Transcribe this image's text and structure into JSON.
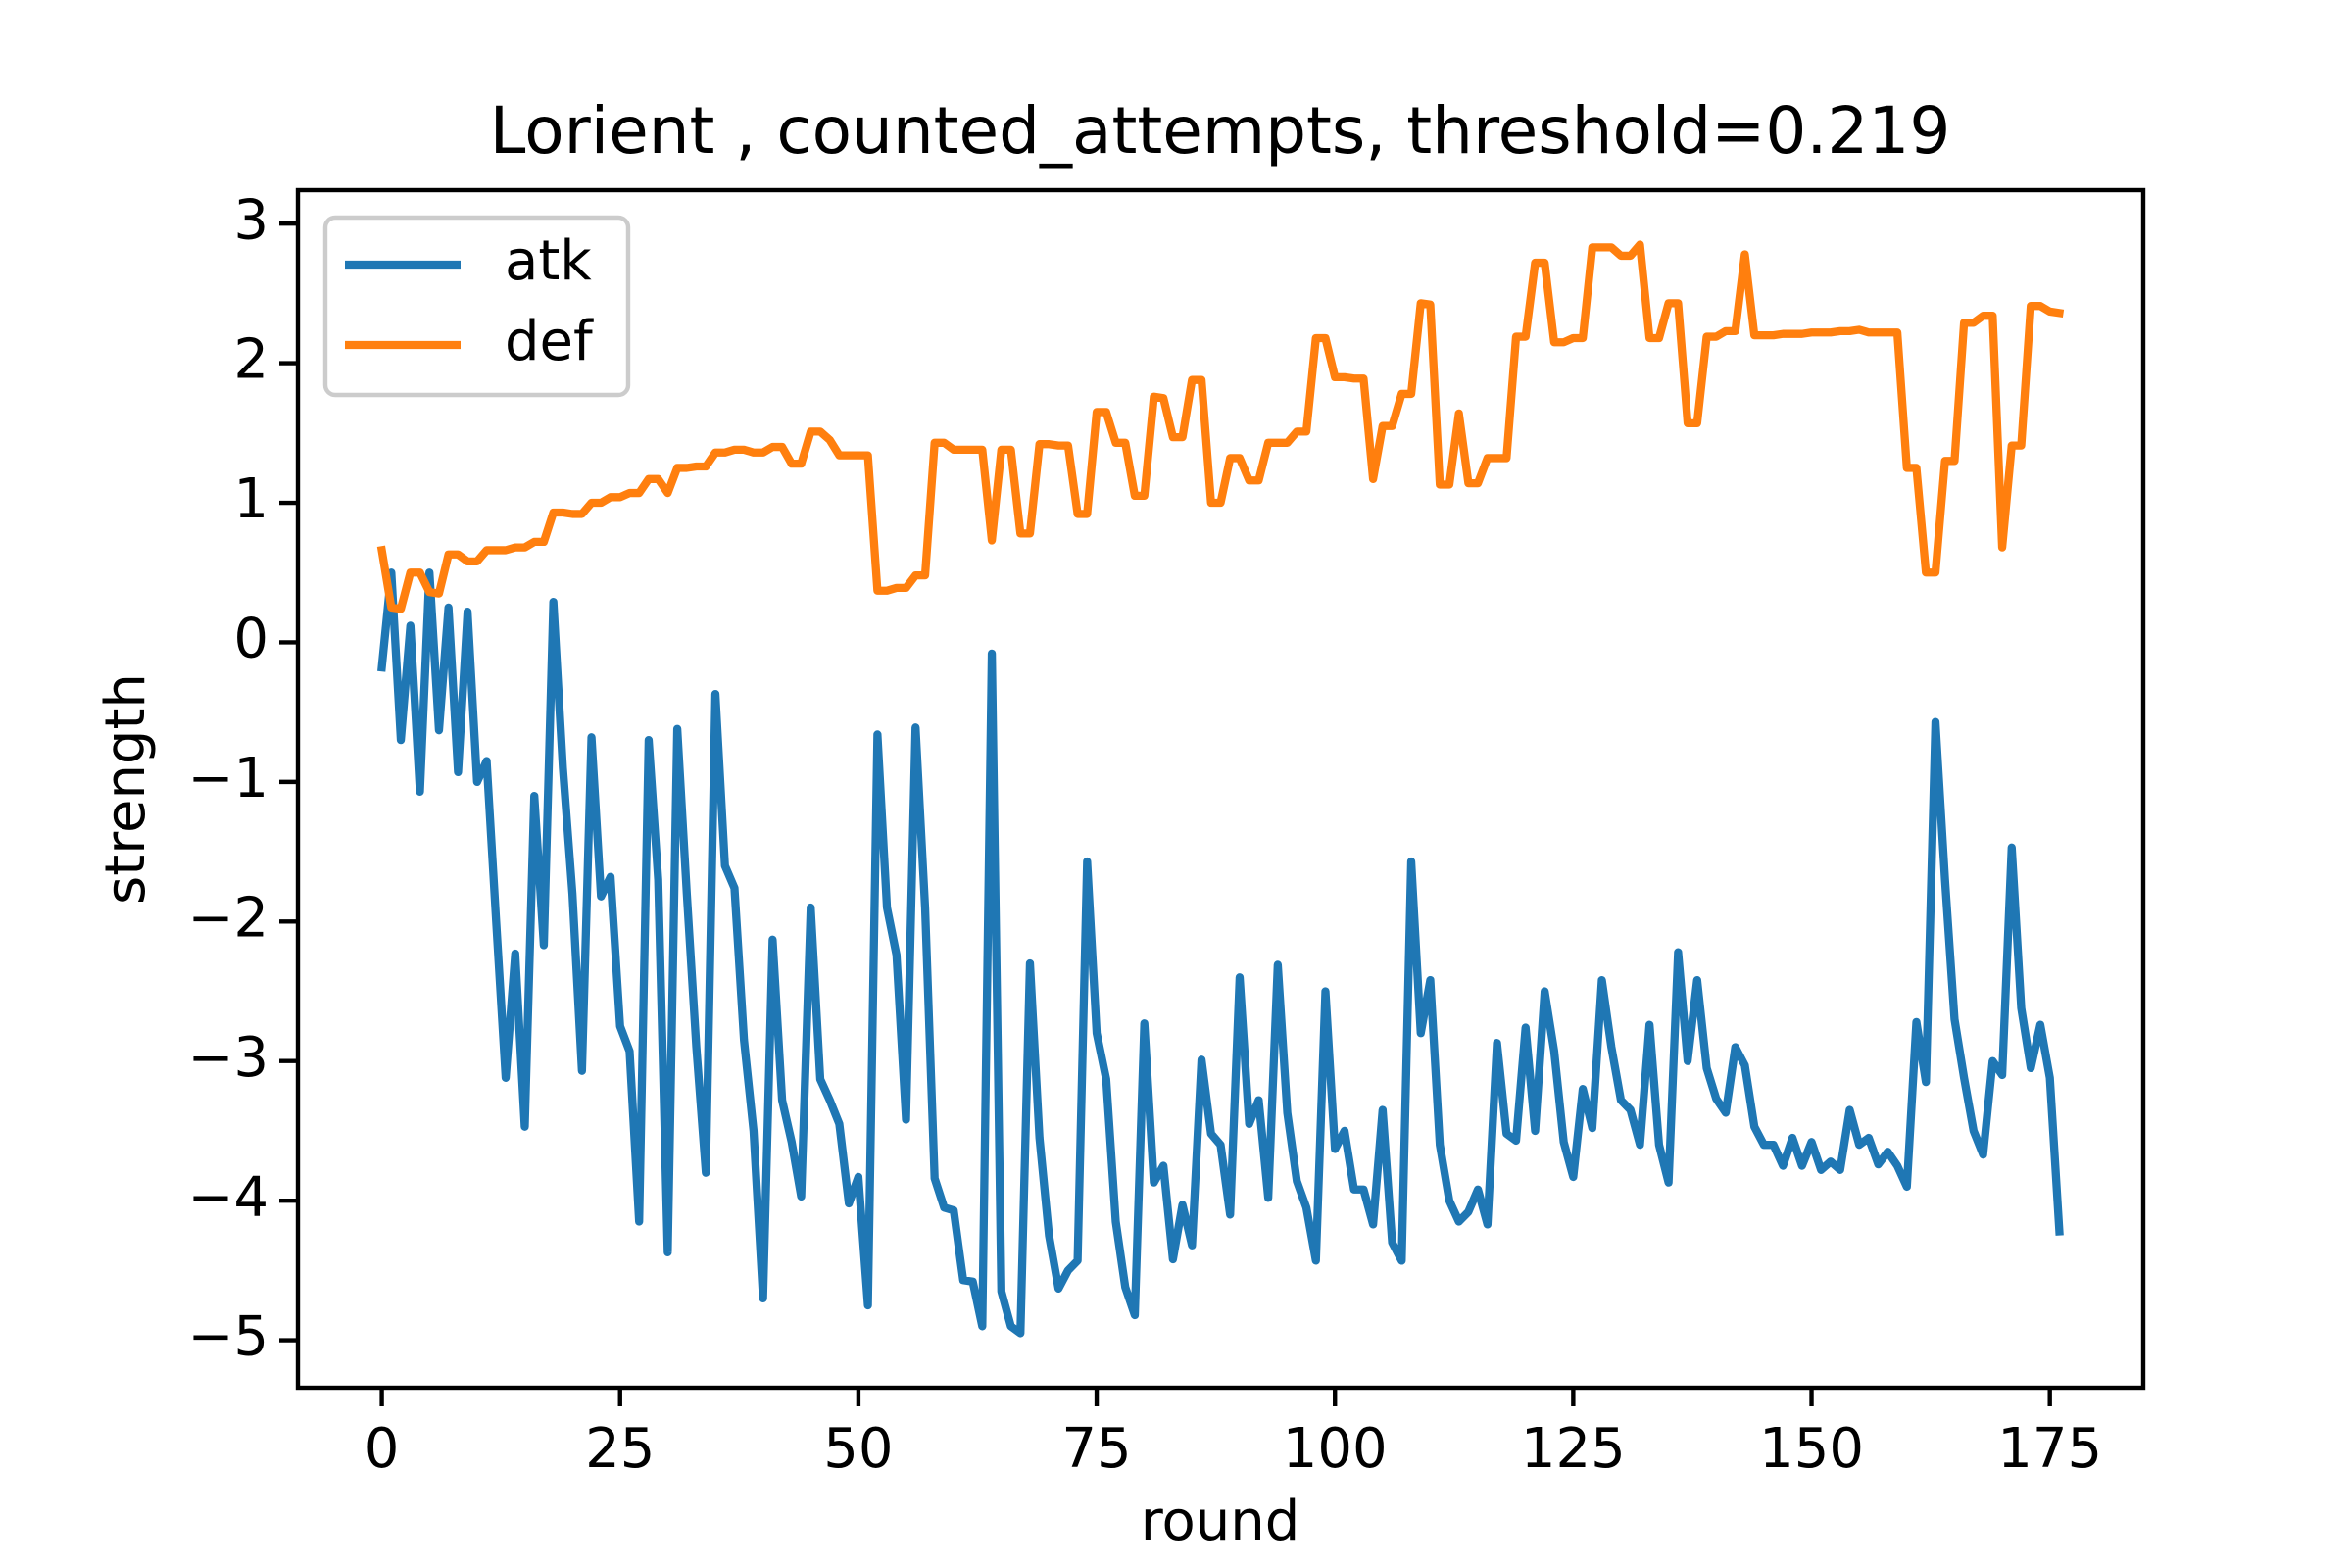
{
  "chart_data": {
    "type": "line",
    "title": "Lorient , counted_attempts, threshold=0.219",
    "x_label": "round",
    "y_label": "strength",
    "x": [
      0,
      1,
      2,
      3,
      4,
      5,
      6,
      7,
      8,
      9,
      10,
      11,
      12,
      13,
      14,
      15,
      16,
      17,
      18,
      19,
      20,
      21,
      22,
      23,
      24,
      25,
      26,
      27,
      28,
      29,
      30,
      31,
      32,
      33,
      34,
      35,
      36,
      37,
      38,
      39,
      40,
      41,
      42,
      43,
      44,
      45,
      46,
      47,
      48,
      49,
      50,
      51,
      52,
      53,
      54,
      55,
      56,
      57,
      58,
      59,
      60,
      61,
      62,
      63,
      64,
      65,
      66,
      67,
      68,
      69,
      70,
      71,
      72,
      73,
      74,
      75,
      76,
      77,
      78,
      79,
      80,
      81,
      82,
      83,
      84,
      85,
      86,
      87,
      88,
      89,
      90,
      91,
      92,
      93,
      94,
      95,
      96,
      97,
      98,
      99,
      100,
      101,
      102,
      103,
      104,
      105,
      106,
      107,
      108,
      109,
      110,
      111,
      112,
      113,
      114,
      115,
      116,
      117,
      118,
      119,
      120,
      121,
      122,
      123,
      124,
      125,
      126,
      127,
      128,
      129,
      130,
      131,
      132,
      133,
      134,
      135,
      136,
      137,
      138,
      139,
      140,
      141,
      142,
      143,
      144,
      145,
      146,
      147,
      148,
      149,
      150,
      151,
      152,
      153,
      154,
      155,
      156,
      157,
      158,
      159,
      160,
      161,
      162,
      163,
      164,
      165,
      166,
      167,
      168,
      169,
      170,
      171,
      172,
      173,
      174,
      175,
      176
    ],
    "series": [
      {
        "name": "atk",
        "color": "#1f77b4",
        "values": [
          -0.18,
          0.5,
          -0.7,
          0.12,
          -1.07,
          0.5,
          -0.63,
          0.25,
          -0.93,
          0.22,
          -1.0,
          -0.85,
          -2.0,
          -3.12,
          -2.23,
          -3.47,
          -1.1,
          -2.17,
          0.29,
          -0.9,
          -1.8,
          -3.07,
          -0.68,
          -1.82,
          -1.68,
          -2.75,
          -2.93,
          -4.15,
          -0.7,
          -1.7,
          -4.37,
          -0.62,
          -1.8,
          -2.9,
          -3.8,
          -0.37,
          -1.6,
          -1.76,
          -2.85,
          -3.5,
          -4.7,
          -2.13,
          -3.28,
          -3.58,
          -3.97,
          -1.9,
          -3.13,
          -3.28,
          -3.45,
          -4.02,
          -3.83,
          -4.75,
          -0.66,
          -1.9,
          -2.24,
          -3.42,
          -0.61,
          -1.9,
          -3.84,
          -4.05,
          -4.07,
          -4.57,
          -4.58,
          -4.9,
          -0.08,
          -4.65,
          -4.9,
          -4.95,
          -2.3,
          -3.55,
          -4.25,
          -4.63,
          -4.5,
          -4.43,
          -1.57,
          -2.8,
          -3.13,
          -4.15,
          -4.62,
          -4.82,
          -2.73,
          -3.87,
          -3.75,
          -4.42,
          -4.03,
          -4.32,
          -2.99,
          -3.52,
          -3.6,
          -4.1,
          -2.4,
          -3.45,
          -3.28,
          -3.98,
          -2.31,
          -3.37,
          -3.86,
          -4.05,
          -4.43,
          -2.5,
          -3.63,
          -3.5,
          -3.92,
          -3.92,
          -4.17,
          -3.35,
          -4.3,
          -4.43,
          -1.57,
          -2.8,
          -2.42,
          -3.6,
          -4.0,
          -4.15,
          -4.08,
          -3.92,
          -4.17,
          -2.87,
          -3.52,
          -3.57,
          -2.76,
          -3.5,
          -2.5,
          -2.93,
          -3.58,
          -3.83,
          -3.2,
          -3.48,
          -2.42,
          -2.9,
          -3.28,
          -3.35,
          -3.6,
          -2.74,
          -3.6,
          -3.87,
          -2.22,
          -3.0,
          -2.42,
          -3.05,
          -3.27,
          -3.37,
          -2.9,
          -3.03,
          -3.47,
          -3.6,
          -3.6,
          -3.75,
          -3.55,
          -3.75,
          -3.58,
          -3.78,
          -3.72,
          -3.78,
          -3.35,
          -3.6,
          -3.55,
          -3.74,
          -3.65,
          -3.75,
          -3.9,
          -2.72,
          -3.15,
          -0.57,
          -1.7,
          -2.7,
          -3.12,
          -3.5,
          -3.67,
          -3.0,
          -3.1,
          -1.47,
          -2.62,
          -3.05,
          -2.74,
          -3.12,
          -4.22
        ]
      },
      {
        "name": "def",
        "color": "#ff7f0e",
        "values": [
          0.66,
          0.25,
          0.24,
          0.5,
          0.5,
          0.36,
          0.35,
          0.63,
          0.63,
          0.58,
          0.58,
          0.66,
          0.66,
          0.66,
          0.68,
          0.68,
          0.72,
          0.72,
          0.93,
          0.93,
          0.92,
          0.92,
          1.0,
          1.0,
          1.04,
          1.04,
          1.07,
          1.07,
          1.17,
          1.17,
          1.07,
          1.25,
          1.25,
          1.26,
          1.26,
          1.36,
          1.36,
          1.38,
          1.38,
          1.36,
          1.36,
          1.4,
          1.4,
          1.28,
          1.28,
          1.51,
          1.51,
          1.45,
          1.34,
          1.34,
          1.34,
          1.34,
          0.37,
          0.37,
          0.39,
          0.39,
          0.48,
          0.48,
          1.43,
          1.43,
          1.38,
          1.38,
          1.38,
          1.38,
          0.73,
          1.38,
          1.38,
          0.78,
          0.78,
          1.42,
          1.42,
          1.41,
          1.41,
          0.92,
          0.92,
          1.65,
          1.65,
          1.43,
          1.43,
          1.05,
          1.05,
          1.76,
          1.75,
          1.47,
          1.47,
          1.88,
          1.88,
          1.0,
          1.0,
          1.32,
          1.32,
          1.16,
          1.16,
          1.43,
          1.43,
          1.43,
          1.51,
          1.51,
          2.18,
          2.18,
          1.9,
          1.9,
          1.89,
          1.89,
          1.17,
          1.55,
          1.55,
          1.78,
          1.78,
          2.43,
          2.42,
          1.13,
          1.13,
          1.64,
          1.14,
          1.14,
          1.32,
          1.32,
          1.32,
          2.19,
          2.19,
          2.72,
          2.72,
          2.15,
          2.15,
          2.18,
          2.18,
          2.83,
          2.83,
          2.83,
          2.77,
          2.77,
          2.85,
          2.18,
          2.18,
          2.43,
          2.43,
          1.57,
          1.57,
          2.19,
          2.19,
          2.23,
          2.23,
          2.78,
          2.2,
          2.2,
          2.2,
          2.21,
          2.21,
          2.21,
          2.22,
          2.22,
          2.22,
          2.23,
          2.23,
          2.24,
          2.22,
          2.22,
          2.22,
          2.22,
          1.25,
          1.25,
          0.5,
          0.5,
          1.3,
          1.3,
          2.29,
          2.29,
          2.34,
          2.34,
          0.68,
          1.41,
          1.41,
          2.41,
          2.41,
          2.37,
          2.36
        ]
      }
    ],
    "xlim": [
      -8.8,
      184.8
    ],
    "ylim": [
      -5.34,
      3.24
    ],
    "xticks": [
      0,
      25,
      50,
      75,
      100,
      125,
      150,
      175
    ],
    "yticks": [
      {
        "value": -5,
        "label": "−5"
      },
      {
        "value": -4,
        "label": "−4"
      },
      {
        "value": -3,
        "label": "−3"
      },
      {
        "value": -2,
        "label": "−2"
      },
      {
        "value": -1,
        "label": "−1"
      },
      0,
      1,
      2,
      3
    ],
    "legend": "upper left"
  }
}
